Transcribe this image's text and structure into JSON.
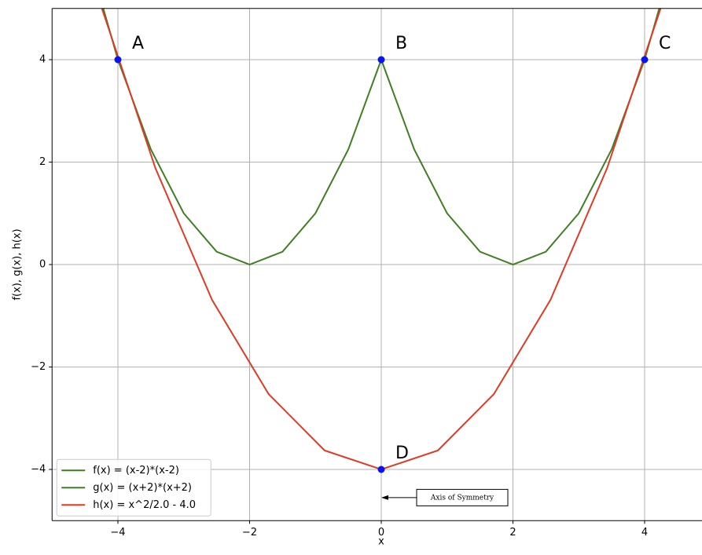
{
  "chart_data": {
    "type": "line",
    "xlabel": "x",
    "ylabel": "f(x), g(x), h(x)",
    "xlim": [
      -5,
      5
    ],
    "ylim": [
      -5,
      5
    ],
    "xticks": [
      {
        "value": -4,
        "label": "−4"
      },
      {
        "value": -2,
        "label": "−2"
      },
      0,
      2,
      4
    ],
    "yticks": [
      {
        "value": -4,
        "label": "−4"
      },
      {
        "value": -2,
        "label": "−2"
      },
      0,
      2,
      4
    ],
    "grid": true,
    "legend": "lower left",
    "series": [
      {
        "name": "f(x) = (x-2)*(x-2)",
        "color": "#3f7f22",
        "x": [
          0,
          0.5,
          1,
          1.5,
          2,
          2.5,
          3,
          3.5,
          4,
          4.5
        ],
        "values": [
          4,
          2.25,
          1,
          0.25,
          0,
          0.25,
          1,
          2.25,
          4,
          6.25
        ]
      },
      {
        "name": "g(x) = (x+2)*(x+2)",
        "color": "#3f7f22",
        "x": [
          -4.5,
          -4,
          -3.5,
          -3,
          -2.5,
          -2,
          -1.5,
          -1,
          -0.5,
          0
        ],
        "values": [
          6.25,
          4,
          2.25,
          1,
          0.25,
          0,
          0.25,
          1,
          2.25,
          4
        ]
      },
      {
        "name": "h(x) = x^2/2.0 - 4.0",
        "color": "#e03a24",
        "x": [
          -4.29,
          -3.43,
          -2.57,
          -1.71,
          -0.86,
          0,
          0.86,
          1.71,
          2.57,
          3.43,
          4.29
        ],
        "values": [
          5.18,
          1.88,
          -0.69,
          -2.53,
          -3.63,
          -4,
          -3.63,
          -2.53,
          -0.69,
          1.88,
          5.18
        ]
      }
    ],
    "points": {
      "color": "#0a14f0",
      "items": [
        {
          "label": "A",
          "x": -4,
          "y": 4
        },
        {
          "label": "B",
          "x": 0,
          "y": 4
        },
        {
          "label": "C",
          "x": 4,
          "y": 4
        },
        {
          "label": "D",
          "x": 0,
          "y": -4
        }
      ]
    },
    "annotation": {
      "text": "Axis of Symmetry",
      "xy": [
        0,
        -4.55
      ],
      "xytext": [
        1.23,
        -4.55
      ]
    }
  }
}
